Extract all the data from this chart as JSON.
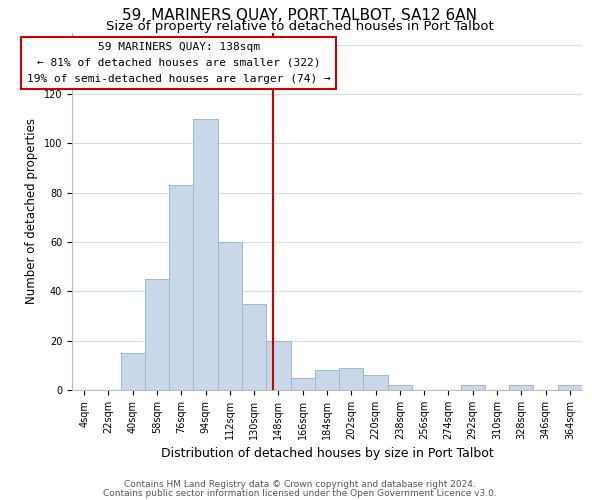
{
  "title": "59, MARINERS QUAY, PORT TALBOT, SA12 6AN",
  "subtitle": "Size of property relative to detached houses in Port Talbot",
  "xlabel": "Distribution of detached houses by size in Port Talbot",
  "ylabel": "Number of detached properties",
  "bin_labels": [
    "4sqm",
    "22sqm",
    "40sqm",
    "58sqm",
    "76sqm",
    "94sqm",
    "112sqm",
    "130sqm",
    "148sqm",
    "166sqm",
    "184sqm",
    "202sqm",
    "220sqm",
    "238sqm",
    "256sqm",
    "274sqm",
    "292sqm",
    "310sqm",
    "328sqm",
    "346sqm",
    "364sqm"
  ],
  "bar_values": [
    0,
    0,
    15,
    45,
    83,
    110,
    60,
    35,
    20,
    5,
    8,
    9,
    6,
    2,
    0,
    0,
    2,
    0,
    2,
    0,
    2
  ],
  "bar_color": "#c8d8e8",
  "bar_edge_color": "#a0b8d0",
  "vline_x": 7.78,
  "annotation_title": "59 MARINERS QUAY: 138sqm",
  "annotation_line1": "← 81% of detached houses are smaller (322)",
  "annotation_line2": "19% of semi-detached houses are larger (74) →",
  "annotation_box_color": "#ffffff",
  "annotation_box_edge_color": "#cc0000",
  "vline_color": "#cc0000",
  "ylim": [
    0,
    145
  ],
  "xlim": [
    -0.5,
    20.5
  ],
  "grid_color": "#d0dce8",
  "footer_line1": "Contains HM Land Registry data © Crown copyright and database right 2024.",
  "footer_line2": "Contains public sector information licensed under the Open Government Licence v3.0.",
  "title_fontsize": 11,
  "subtitle_fontsize": 9.5,
  "xlabel_fontsize": 9,
  "ylabel_fontsize": 8.5,
  "tick_fontsize": 7,
  "annotation_fontsize": 8,
  "footer_fontsize": 6.5
}
